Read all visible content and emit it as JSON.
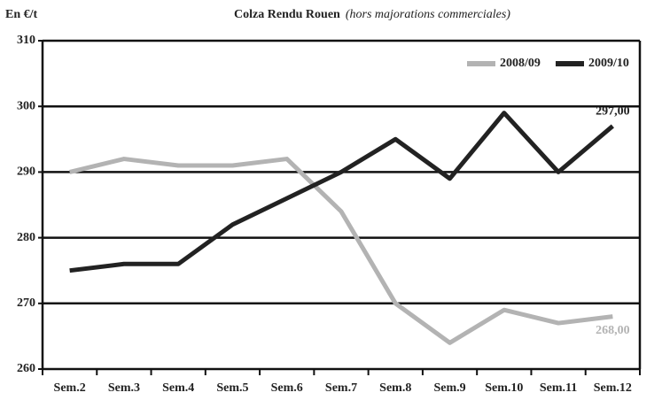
{
  "chart_data": {
    "type": "line",
    "title": "Colza Rendu Rouen",
    "subtitle": "(hors majorations commerciales)",
    "y_label": "En €/t",
    "categories": [
      "Sem.2",
      "Sem.3",
      "Sem.4",
      "Sem.5",
      "Sem.6",
      "Sem.7",
      "Sem.8",
      "Sem.9",
      "Sem.10",
      "Sem.11",
      "Sem.12"
    ],
    "series": [
      {
        "name": "2008/09",
        "color": "#b3b3b3",
        "values": [
          290,
          292,
          291,
          291,
          292,
          284,
          270,
          264,
          269,
          267,
          268
        ],
        "value_labels": [
          null,
          null,
          null,
          null,
          null,
          null,
          null,
          null,
          null,
          null,
          "268,00"
        ]
      },
      {
        "name": "2009/10",
        "color": "#222222",
        "values": [
          275,
          276,
          276,
          282,
          286,
          290,
          295,
          289,
          299,
          290,
          297
        ],
        "value_labels": [
          null,
          null,
          null,
          null,
          null,
          null,
          null,
          null,
          null,
          null,
          "297,00"
        ]
      }
    ],
    "ylim": [
      260,
      310
    ],
    "yticks": [
      260,
      270,
      280,
      290,
      300,
      310
    ],
    "grid": true,
    "legend": "top-right"
  }
}
